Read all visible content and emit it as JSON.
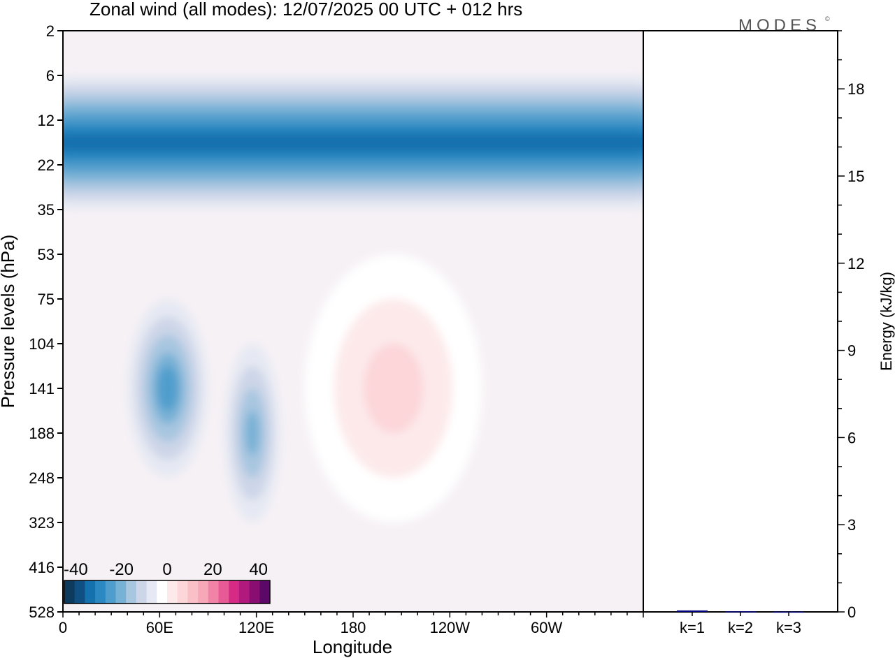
{
  "title": "Zonal wind (all modes):  12/07/2025  00 UTC  + 012 hrs",
  "brand": "MODES",
  "brand_mark": "©",
  "chart_data": [
    {
      "type": "heatmap",
      "title": "Zonal wind (all modes):  12/07/2025  00 UTC  + 012 hrs",
      "xlabel": "Longitude",
      "ylabel": "Pressure levels (hPa)",
      "x_ticks": [
        "0",
        "60E",
        "120E",
        "180",
        "120W",
        "60W"
      ],
      "x_tick_values": [
        0,
        60,
        120,
        180,
        240,
        300
      ],
      "xlim": [
        0,
        360
      ],
      "y_levels": [
        "2",
        "6",
        "12",
        "22",
        "35",
        "53",
        "75",
        "104",
        "141",
        "188",
        "248",
        "323",
        "416",
        "528"
      ],
      "y_scale": "pressure levels (top = 2 hPa, bottom = 528 hPa)",
      "colorbar": {
        "labels": [
          "-40",
          "-20",
          "0",
          "20",
          "40"
        ],
        "range": [
          -45,
          45
        ],
        "step": 5,
        "colors": [
          "#0d3b5e",
          "#0f4f82",
          "#1471ae",
          "#2b88c1",
          "#4f9dcc",
          "#78b1d6",
          "#a8c6e0",
          "#cdd6e8",
          "#e6e9f3",
          "#ffffff",
          "#fde9ea",
          "#fcd6d9",
          "#f9c0c7",
          "#f6a7b8",
          "#f184a6",
          "#e85a95",
          "#d62b85",
          "#b11a7c",
          "#8a0e72",
          "#5c0868"
        ],
        "placement": "bottom-left"
      },
      "features": [
        {
          "type": "easterly",
          "lon": [
            0,
            360
          ],
          "p_top": 6,
          "p_bottom": 35,
          "peak": -35
        },
        {
          "type": "easterly",
          "lon": [
            40,
            90
          ],
          "p_top": 75,
          "p_bottom": 248,
          "peak": -25
        },
        {
          "type": "easterly",
          "lon": [
            100,
            135
          ],
          "p_top": 104,
          "p_bottom": 323,
          "peak": -20
        },
        {
          "type": "westerly",
          "lon": [
            150,
            260
          ],
          "p_top": 53,
          "p_bottom": 323,
          "peak": 15
        }
      ]
    },
    {
      "type": "bar",
      "ylabel": "Energy (kJ/kg)",
      "categories": [
        "k=1",
        "k=2",
        "k=3"
      ],
      "values": [
        0.05,
        0.02,
        0.01
      ],
      "ylim": [
        0,
        20
      ],
      "y_ticks": [
        0,
        3,
        6,
        9,
        12,
        15,
        18
      ],
      "bar_color": "#00007a"
    }
  ]
}
